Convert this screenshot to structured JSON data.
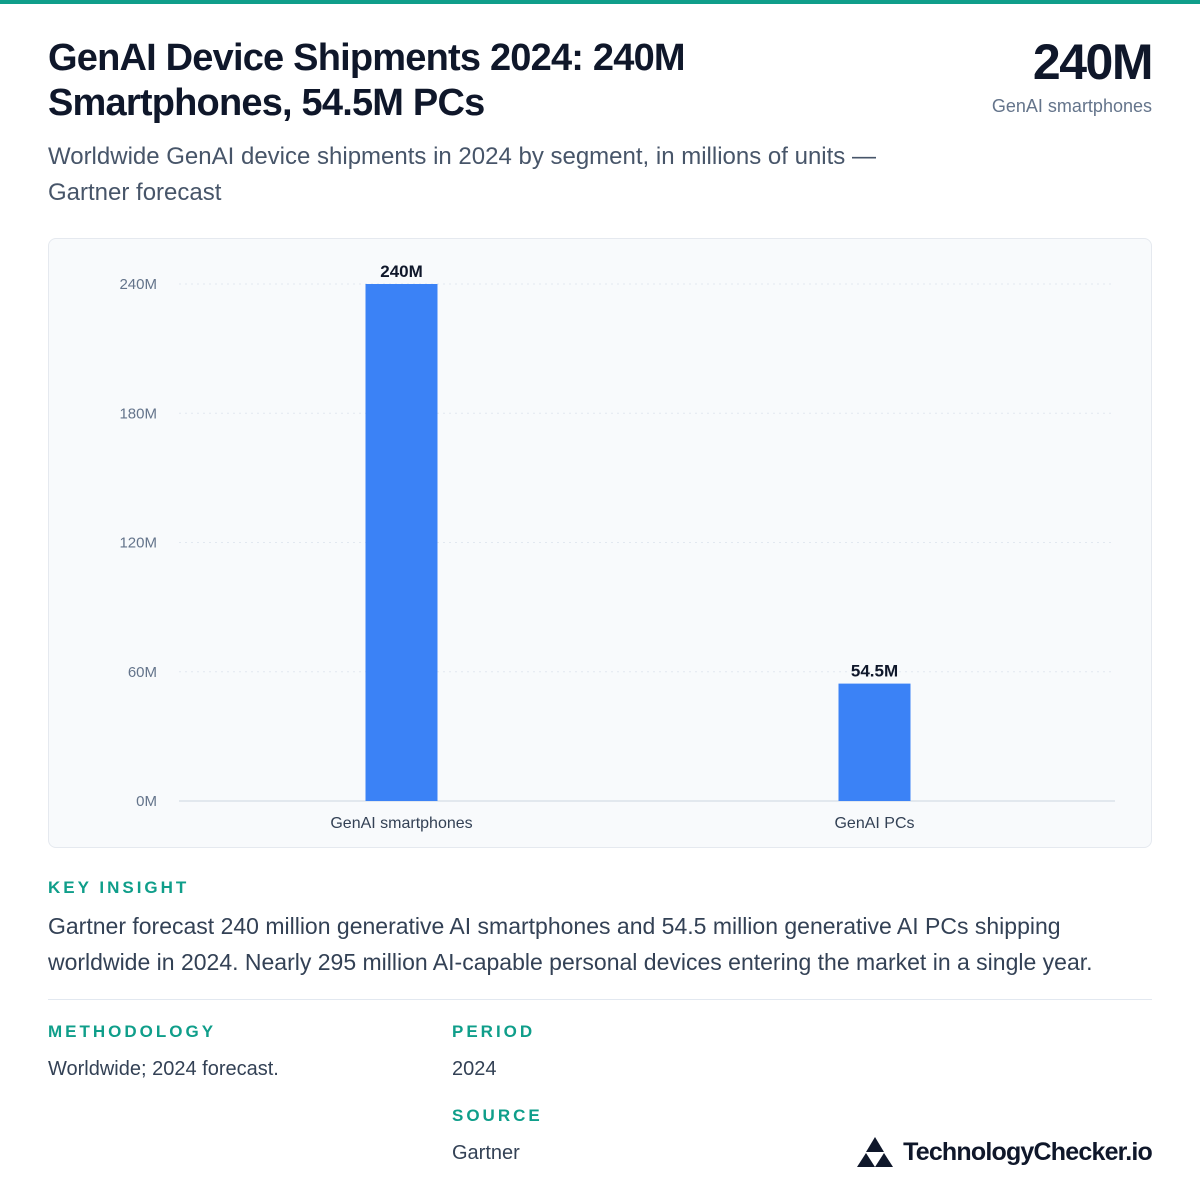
{
  "header": {
    "title": "GenAI Device Shipments 2024: 240M Smartphones, 54.5M PCs",
    "subtitle": "Worldwide GenAI device shipments in 2024 by segment, in millions of units — Gartner forecast",
    "hero_value": "240M",
    "hero_label": "GenAI smartphones"
  },
  "chart_data": {
    "type": "bar",
    "categories": [
      "GenAI smartphones",
      "GenAI PCs"
    ],
    "values": [
      240,
      54.5
    ],
    "data_labels": [
      "240M",
      "54.5M"
    ],
    "y_ticks": [
      0,
      60,
      120,
      180,
      240
    ],
    "y_tick_labels": [
      "0M",
      "60M",
      "120M",
      "180M",
      "240M"
    ],
    "ylim": [
      0,
      240
    ],
    "grid": true,
    "legend": "none",
    "bar_color": "#3b82f6"
  },
  "insight": {
    "label": "KEY INSIGHT",
    "text": "Gartner forecast 240 million generative AI smartphones and 54.5 million generative AI PCs shipping worldwide in 2024. Nearly 295 million AI-capable personal devices entering the market in a single year."
  },
  "meta": {
    "methodology_label": "METHODOLOGY",
    "methodology_value": "Worldwide; 2024 forecast.",
    "period_label": "PERIOD",
    "period_value": "2024",
    "source_label": "SOURCE",
    "source_value": "Gartner"
  },
  "brand": {
    "name": "TechnologyChecker.io",
    "icon": "triangle-logo-icon"
  },
  "colors": {
    "accent": "#0f9e8a",
    "bar": "#3b82f6"
  }
}
